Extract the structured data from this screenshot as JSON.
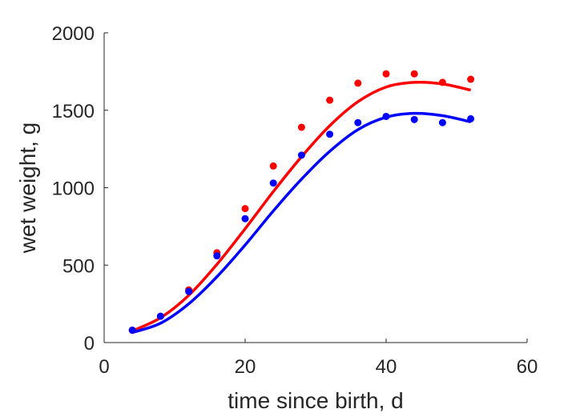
{
  "chart_data": {
    "type": "scatter",
    "title": "",
    "xlabel": "time since birth, d",
    "ylabel": "wet weight, g",
    "xlim": [
      0,
      60
    ],
    "ylim": [
      0,
      2000
    ],
    "xticks": [
      0,
      20,
      40,
      60
    ],
    "yticks": [
      0,
      500,
      1000,
      1500,
      2000
    ],
    "xtick_labels": [
      "0",
      "20",
      "40",
      "60"
    ],
    "ytick_labels": [
      "0",
      "500",
      "1000",
      "1500",
      "2000"
    ],
    "grid": false,
    "legend": "none",
    "series": [
      {
        "kind": "points",
        "color": "#ff0000",
        "x": [
          4,
          8,
          12,
          16,
          20,
          24,
          28,
          32,
          36,
          40,
          44,
          48,
          52
        ],
        "y": [
          80,
          170,
          340,
          580,
          865,
          1140,
          1390,
          1565,
          1675,
          1735,
          1735,
          1680,
          1700
        ]
      },
      {
        "kind": "points",
        "color": "#0000ff",
        "x": [
          4,
          8,
          12,
          16,
          20,
          24,
          28,
          32,
          36,
          40,
          44,
          48,
          52
        ],
        "y": [
          80,
          170,
          330,
          560,
          800,
          1030,
          1210,
          1345,
          1420,
          1460,
          1440,
          1420,
          1445
        ]
      },
      {
        "kind": "line",
        "color": "#ff0000",
        "x": [
          4,
          8,
          12,
          16,
          20,
          24,
          28,
          32,
          36,
          40,
          44,
          48,
          52
        ],
        "y": [
          75,
          160,
          305,
          505,
          735,
          975,
          1200,
          1400,
          1555,
          1650,
          1680,
          1670,
          1630
        ]
      },
      {
        "kind": "line",
        "color": "#0000ff",
        "x": [
          4,
          8,
          12,
          16,
          20,
          24,
          28,
          32,
          36,
          40,
          44,
          48,
          52
        ],
        "y": [
          65,
          125,
          250,
          425,
          630,
          850,
          1055,
          1235,
          1375,
          1455,
          1480,
          1465,
          1425
        ]
      }
    ]
  }
}
